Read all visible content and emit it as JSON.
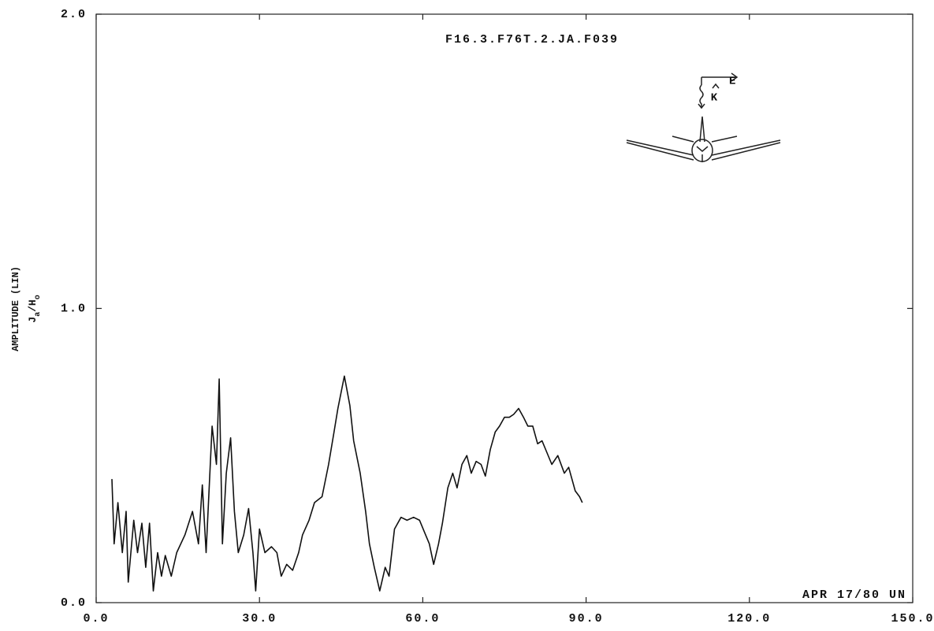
{
  "chart_data": {
    "type": "line",
    "title": "F16.3.F76T.2.JA.F039",
    "annotation": "APR 17/80 UN",
    "y_label": "AMPLITUDE (LIN)",
    "y_unit_parts": [
      "J",
      "a",
      "/H",
      "o"
    ],
    "diagram_labels": [
      "E",
      "K"
    ],
    "xlim": [
      0,
      150
    ],
    "ylim": [
      0,
      2
    ],
    "xticks": [
      {
        "value": 0,
        "label": "0.0"
      },
      {
        "value": 30,
        "label": "30.0"
      },
      {
        "value": 60,
        "label": "60.0"
      },
      {
        "value": 90,
        "label": "90.0"
      },
      {
        "value": 120,
        "label": "120.0"
      },
      {
        "value": 150,
        "label": "150.0"
      }
    ],
    "yticks": [
      {
        "value": 0,
        "label": "0.0"
      },
      {
        "value": 1,
        "label": "1.0"
      },
      {
        "value": 2,
        "label": "2.0"
      }
    ],
    "grid": false,
    "x": [
      2.9,
      3.3,
      4.0,
      4.8,
      5.5,
      5.9,
      6.9,
      7.6,
      8.4,
      9.1,
      9.8,
      10.5,
      11.3,
      12.0,
      12.7,
      13.8,
      14.8,
      16.3,
      17.7,
      18.8,
      19.5,
      20.2,
      21.3,
      22.1,
      22.6,
      23.2,
      23.9,
      24.7,
      25.4,
      26.1,
      27.1,
      28.0,
      28.8,
      29.3,
      30.0,
      31.0,
      32.2,
      33.2,
      34.0,
      35.0,
      36.1,
      37.2,
      37.9,
      39.1,
      40.1,
      41.5,
      42.7,
      43.7,
      44.4,
      45.6,
      46.6,
      47.3,
      48.5,
      49.5,
      50.2,
      51.1,
      52.1,
      53.1,
      53.8,
      54.8,
      56.0,
      57.1,
      58.3,
      59.4,
      60.3,
      61.2,
      62.0,
      62.9,
      63.6,
      64.6,
      65.5,
      66.3,
      67.2,
      68.1,
      68.9,
      69.8,
      70.7,
      71.5,
      72.4,
      73.3,
      74.1,
      75.0,
      75.9,
      76.7,
      77.6,
      78.5,
      79.3,
      80.2,
      81.1,
      81.9,
      82.8,
      83.7,
      84.8,
      86.0,
      86.8,
      88.0,
      88.8,
      89.3
    ],
    "series": [
      {
        "name": "Ja/Ho",
        "color": "#111111",
        "values": [
          0.42,
          0.2,
          0.34,
          0.17,
          0.31,
          0.07,
          0.28,
          0.17,
          0.27,
          0.12,
          0.27,
          0.04,
          0.17,
          0.09,
          0.16,
          0.09,
          0.17,
          0.23,
          0.31,
          0.2,
          0.4,
          0.17,
          0.6,
          0.47,
          0.76,
          0.2,
          0.44,
          0.56,
          0.31,
          0.17,
          0.23,
          0.32,
          0.17,
          0.04,
          0.25,
          0.17,
          0.19,
          0.17,
          0.09,
          0.13,
          0.11,
          0.17,
          0.23,
          0.28,
          0.34,
          0.36,
          0.47,
          0.58,
          0.66,
          0.77,
          0.67,
          0.55,
          0.44,
          0.31,
          0.2,
          0.12,
          0.04,
          0.12,
          0.09,
          0.25,
          0.29,
          0.28,
          0.29,
          0.28,
          0.24,
          0.2,
          0.13,
          0.2,
          0.27,
          0.39,
          0.44,
          0.39,
          0.47,
          0.5,
          0.44,
          0.48,
          0.47,
          0.43,
          0.52,
          0.58,
          0.6,
          0.63,
          0.63,
          0.64,
          0.66,
          0.63,
          0.6,
          0.6,
          0.54,
          0.55,
          0.51,
          0.47,
          0.5,
          0.44,
          0.46,
          0.38,
          0.36,
          0.34
        ]
      }
    ]
  }
}
